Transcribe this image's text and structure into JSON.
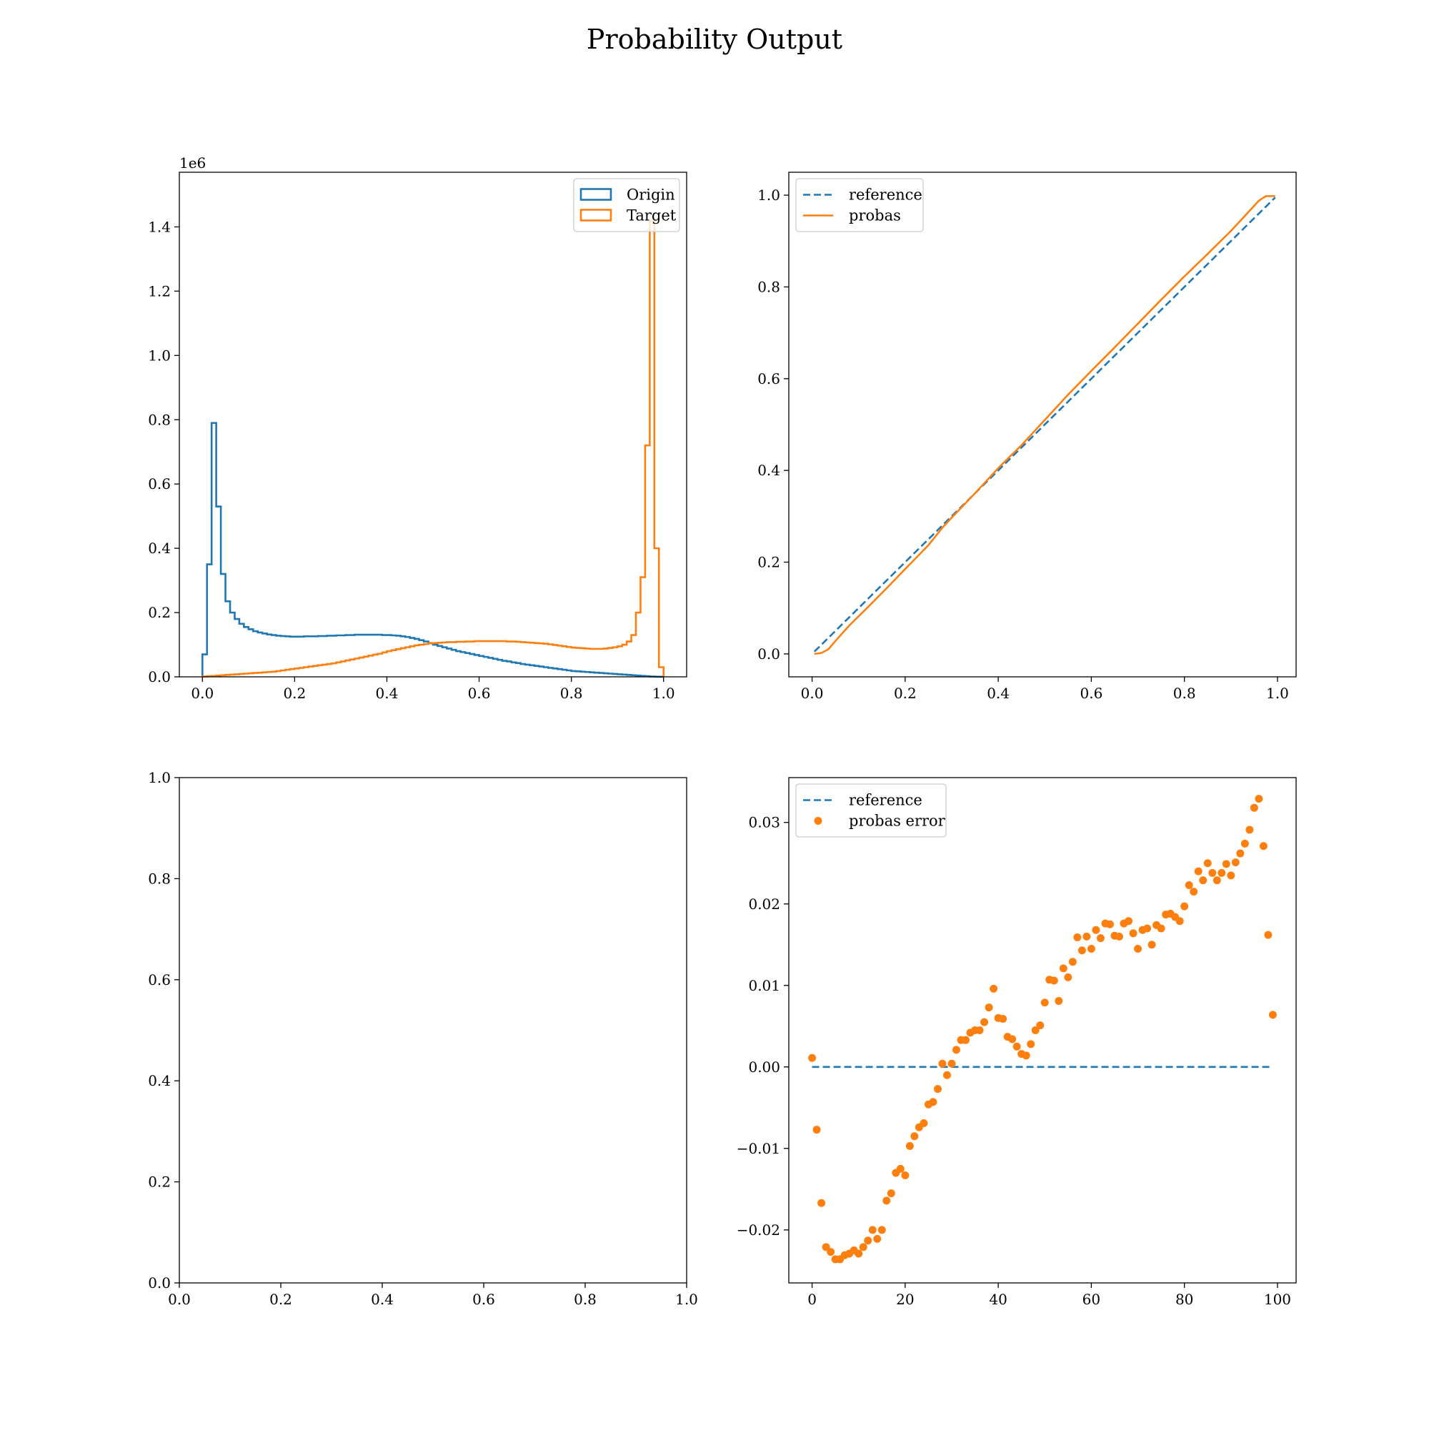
{
  "figure": {
    "title": "Probability Output"
  },
  "colors": {
    "blue": "#1f77b4",
    "orange": "#ff7f0e"
  },
  "chart_data": [
    {
      "type": "histogram",
      "position": "top-left",
      "xlim": [
        -0.05,
        1.05
      ],
      "ylim": [
        0,
        1.57
      ],
      "y_offset_label": "1e6",
      "x_ticks": [
        0.0,
        0.2,
        0.4,
        0.6,
        0.8,
        1.0
      ],
      "x_tick_labels": [
        "0.0",
        "0.2",
        "0.4",
        "0.6",
        "0.8",
        "1.0"
      ],
      "y_ticks": [
        0.0,
        0.2,
        0.4,
        0.6,
        0.8,
        1.0,
        1.2,
        1.4
      ],
      "y_tick_labels": [
        "0.0",
        "0.2",
        "0.4",
        "0.6",
        "0.8",
        "1.0",
        "1.2",
        "1.4"
      ],
      "legend_position": "upper-right",
      "bin_edges_start": 0.0,
      "bin_width": 0.01,
      "series": [
        {
          "name": "Origin",
          "color": "#1f77b4",
          "values": [
            0.07,
            0.35,
            0.79,
            0.53,
            0.32,
            0.235,
            0.2,
            0.18,
            0.165,
            0.155,
            0.148,
            0.142,
            0.138,
            0.135,
            0.132,
            0.13,
            0.128,
            0.127,
            0.126,
            0.125,
            0.125,
            0.125,
            0.126,
            0.126,
            0.126,
            0.127,
            0.127,
            0.128,
            0.128,
            0.129,
            0.129,
            0.13,
            0.13,
            0.131,
            0.131,
            0.131,
            0.131,
            0.131,
            0.131,
            0.13,
            0.13,
            0.129,
            0.128,
            0.126,
            0.124,
            0.121,
            0.118,
            0.114,
            0.11,
            0.105,
            0.1,
            0.096,
            0.092,
            0.088,
            0.084,
            0.08,
            0.077,
            0.074,
            0.071,
            0.068,
            0.065,
            0.062,
            0.059,
            0.056,
            0.053,
            0.05,
            0.048,
            0.045,
            0.043,
            0.04,
            0.038,
            0.036,
            0.034,
            0.032,
            0.03,
            0.028,
            0.026,
            0.024,
            0.022,
            0.02,
            0.018,
            0.017,
            0.016,
            0.015,
            0.014,
            0.013,
            0.012,
            0.011,
            0.01,
            0.009,
            0.008,
            0.007,
            0.006,
            0.005,
            0.004,
            0.003,
            0.002,
            0.001,
            0.0005,
            0.0002
          ]
        },
        {
          "name": "Target",
          "color": "#ff7f0e",
          "values": [
            0.001,
            0.002,
            0.003,
            0.004,
            0.005,
            0.006,
            0.007,
            0.008,
            0.009,
            0.01,
            0.011,
            0.012,
            0.013,
            0.014,
            0.015,
            0.016,
            0.018,
            0.02,
            0.022,
            0.024,
            0.026,
            0.028,
            0.03,
            0.032,
            0.034,
            0.036,
            0.038,
            0.04,
            0.042,
            0.045,
            0.048,
            0.051,
            0.054,
            0.057,
            0.06,
            0.063,
            0.066,
            0.069,
            0.072,
            0.076,
            0.08,
            0.083,
            0.086,
            0.089,
            0.092,
            0.095,
            0.098,
            0.1,
            0.102,
            0.104,
            0.105,
            0.106,
            0.107,
            0.108,
            0.108,
            0.109,
            0.109,
            0.11,
            0.11,
            0.111,
            0.111,
            0.111,
            0.111,
            0.111,
            0.111,
            0.111,
            0.11,
            0.11,
            0.109,
            0.108,
            0.107,
            0.106,
            0.105,
            0.104,
            0.103,
            0.101,
            0.099,
            0.097,
            0.095,
            0.093,
            0.091,
            0.09,
            0.089,
            0.088,
            0.087,
            0.087,
            0.087,
            0.088,
            0.09,
            0.092,
            0.095,
            0.1,
            0.11,
            0.13,
            0.2,
            0.31,
            0.72,
            1.42,
            0.4,
            0.03
          ]
        }
      ]
    },
    {
      "type": "line",
      "position": "top-right",
      "xlim": [
        -0.05,
        1.04
      ],
      "ylim": [
        -0.05,
        1.05
      ],
      "x_ticks": [
        0.0,
        0.2,
        0.4,
        0.6,
        0.8,
        1.0
      ],
      "x_tick_labels": [
        "0.0",
        "0.2",
        "0.4",
        "0.6",
        "0.8",
        "1.0"
      ],
      "y_ticks": [
        0.0,
        0.2,
        0.4,
        0.6,
        0.8,
        1.0
      ],
      "y_tick_labels": [
        "0.0",
        "0.2",
        "0.4",
        "0.6",
        "0.8",
        "1.0"
      ],
      "legend_position": "upper-left",
      "series": [
        {
          "name": "reference",
          "style": "dashed",
          "color": "#1f77b4",
          "x": [
            0.005,
            0.995
          ],
          "y": [
            0.005,
            0.995
          ]
        },
        {
          "name": "probas",
          "style": "solid",
          "color": "#ff7f0e",
          "x": [
            0.005,
            0.02,
            0.035,
            0.05,
            0.08,
            0.12,
            0.16,
            0.2,
            0.25,
            0.28,
            0.3,
            0.35,
            0.4,
            0.45,
            0.5,
            0.55,
            0.6,
            0.65,
            0.7,
            0.75,
            0.8,
            0.85,
            0.9,
            0.93,
            0.96,
            0.975,
            0.995
          ],
          "y": [
            0.0,
            0.002,
            0.01,
            0.028,
            0.062,
            0.102,
            0.143,
            0.185,
            0.237,
            0.275,
            0.297,
            0.35,
            0.405,
            0.455,
            0.51,
            0.565,
            0.617,
            0.668,
            0.72,
            0.772,
            0.823,
            0.872,
            0.922,
            0.955,
            0.988,
            0.998,
            0.998
          ]
        }
      ]
    },
    {
      "type": "empty",
      "position": "bottom-left",
      "xlim": [
        0,
        1
      ],
      "ylim": [
        0,
        1
      ],
      "x_ticks": [
        0.0,
        0.2,
        0.4,
        0.6,
        0.8,
        1.0
      ],
      "x_tick_labels": [
        "0.0",
        "0.2",
        "0.4",
        "0.6",
        "0.8",
        "1.0"
      ],
      "y_ticks": [
        0.0,
        0.2,
        0.4,
        0.6,
        0.8,
        1.0
      ],
      "y_tick_labels": [
        "0.0",
        "0.2",
        "0.4",
        "0.6",
        "0.8",
        "1.0"
      ]
    },
    {
      "type": "scatter",
      "position": "bottom-right",
      "xlim": [
        -5,
        104
      ],
      "ylim": [
        -0.0265,
        0.0355
      ],
      "x_ticks": [
        0,
        20,
        40,
        60,
        80,
        100
      ],
      "x_tick_labels": [
        "0",
        "20",
        "40",
        "60",
        "80",
        "100"
      ],
      "y_ticks": [
        -0.02,
        -0.01,
        0.0,
        0.01,
        0.02,
        0.03
      ],
      "y_tick_labels": [
        "−0.02",
        "−0.01",
        "0.00",
        "0.01",
        "0.02",
        "0.03"
      ],
      "legend_position": "upper-left",
      "series": [
        {
          "name": "reference",
          "style": "dashed",
          "color": "#1f77b4",
          "x": [
            0,
            99
          ],
          "y": [
            0,
            0
          ]
        },
        {
          "name": "probas error",
          "style": "points",
          "color": "#ff7f0e",
          "y": [
            0.0011,
            -0.0077,
            -0.0167,
            -0.0221,
            -0.0227,
            -0.0236,
            -0.0236,
            -0.0231,
            -0.0229,
            -0.0225,
            -0.0229,
            -0.0221,
            -0.0213,
            -0.02,
            -0.0211,
            -0.02,
            -0.0164,
            -0.0155,
            -0.013,
            -0.0125,
            -0.0133,
            -0.0097,
            -0.0085,
            -0.0074,
            -0.0069,
            -0.0046,
            -0.0043,
            -0.0027,
            0.0004,
            -0.001,
            0.0004,
            0.0021,
            0.0033,
            0.0033,
            0.0042,
            0.0045,
            0.0045,
            0.0055,
            0.0073,
            0.0096,
            0.006,
            0.0059,
            0.0037,
            0.0034,
            0.0025,
            0.0016,
            0.0014,
            0.0028,
            0.0045,
            0.0051,
            0.0079,
            0.0107,
            0.0106,
            0.0081,
            0.0121,
            0.011,
            0.0129,
            0.0159,
            0.0143,
            0.016,
            0.0145,
            0.0168,
            0.0158,
            0.0176,
            0.0175,
            0.0161,
            0.016,
            0.0176,
            0.0179,
            0.0164,
            0.0145,
            0.0168,
            0.017,
            0.015,
            0.0174,
            0.017,
            0.0187,
            0.0188,
            0.0184,
            0.0179,
            0.0197,
            0.0223,
            0.0215,
            0.024,
            0.0229,
            0.025,
            0.0238,
            0.0229,
            0.0238,
            0.0249,
            0.0235,
            0.0251,
            0.0262,
            0.0274,
            0.0291,
            0.0318,
            0.0329,
            0.0271,
            0.0162,
            0.0064
          ]
        }
      ]
    }
  ]
}
